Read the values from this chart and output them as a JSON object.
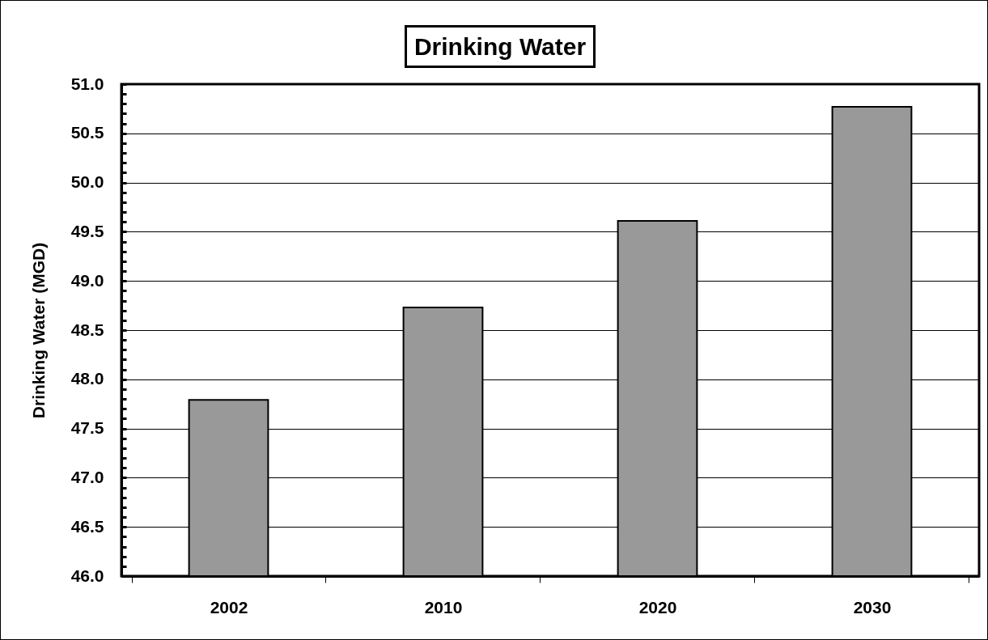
{
  "chart_data": {
    "type": "bar",
    "title": "Drinking Water",
    "ylabel": "Drinking Water (MGD)",
    "categories": [
      "2002",
      "2010",
      "2020",
      "2030"
    ],
    "values": [
      47.79,
      48.73,
      49.61,
      50.77
    ],
    "color": "#999999",
    "ylim": [
      46,
      51
    ],
    "yticks": [
      {
        "value": 46,
        "label": "46.0"
      },
      {
        "value": 46.1,
        "label": null
      },
      {
        "value": 46.2,
        "label": null
      },
      {
        "value": 46.3,
        "label": null
      },
      {
        "value": 46.4,
        "label": null
      },
      {
        "value": 46.5,
        "label": "46.5"
      },
      {
        "value": 46.6,
        "label": null
      },
      {
        "value": 46.7,
        "label": null
      },
      {
        "value": 46.8,
        "label": null
      },
      {
        "value": 46.9,
        "label": null
      },
      {
        "value": 47,
        "label": "47.0"
      },
      {
        "value": 47.1,
        "label": null
      },
      {
        "value": 47.2,
        "label": null
      },
      {
        "value": 47.3,
        "label": null
      },
      {
        "value": 47.4,
        "label": null
      },
      {
        "value": 47.5,
        "label": "47.5"
      },
      {
        "value": 47.6,
        "label": null
      },
      {
        "value": 47.7,
        "label": null
      },
      {
        "value": 47.8,
        "label": null
      },
      {
        "value": 47.9,
        "label": null
      },
      {
        "value": 48,
        "label": "48.0"
      },
      {
        "value": 48.1,
        "label": null
      },
      {
        "value": 48.2,
        "label": null
      },
      {
        "value": 48.3,
        "label": null
      },
      {
        "value": 48.4,
        "label": null
      },
      {
        "value": 48.5,
        "label": "48.5"
      },
      {
        "value": 48.6,
        "label": null
      },
      {
        "value": 48.7,
        "label": null
      },
      {
        "value": 48.8,
        "label": null
      },
      {
        "value": 48.9,
        "label": null
      },
      {
        "value": 49,
        "label": "49.0"
      },
      {
        "value": 49.1,
        "label": null
      },
      {
        "value": 49.2,
        "label": null
      },
      {
        "value": 49.3,
        "label": null
      },
      {
        "value": 49.4,
        "label": null
      },
      {
        "value": 49.5,
        "label": "49.5"
      },
      {
        "value": 49.6,
        "label": null
      },
      {
        "value": 49.7,
        "label": null
      },
      {
        "value": 49.8,
        "label": null
      },
      {
        "value": 49.9,
        "label": null
      },
      {
        "value": 50,
        "label": "50.0"
      },
      {
        "value": 50.1,
        "label": null
      },
      {
        "value": 50.2,
        "label": null
      },
      {
        "value": 50.3,
        "label": null
      },
      {
        "value": 50.4,
        "label": null
      },
      {
        "value": 50.5,
        "label": "50.5"
      },
      {
        "value": 50.6,
        "label": null
      },
      {
        "value": 50.7,
        "label": null
      },
      {
        "value": 50.8,
        "label": null
      },
      {
        "value": 50.9,
        "label": null
      },
      {
        "value": 51,
        "label": "51.0"
      }
    ],
    "grid": "y"
  }
}
